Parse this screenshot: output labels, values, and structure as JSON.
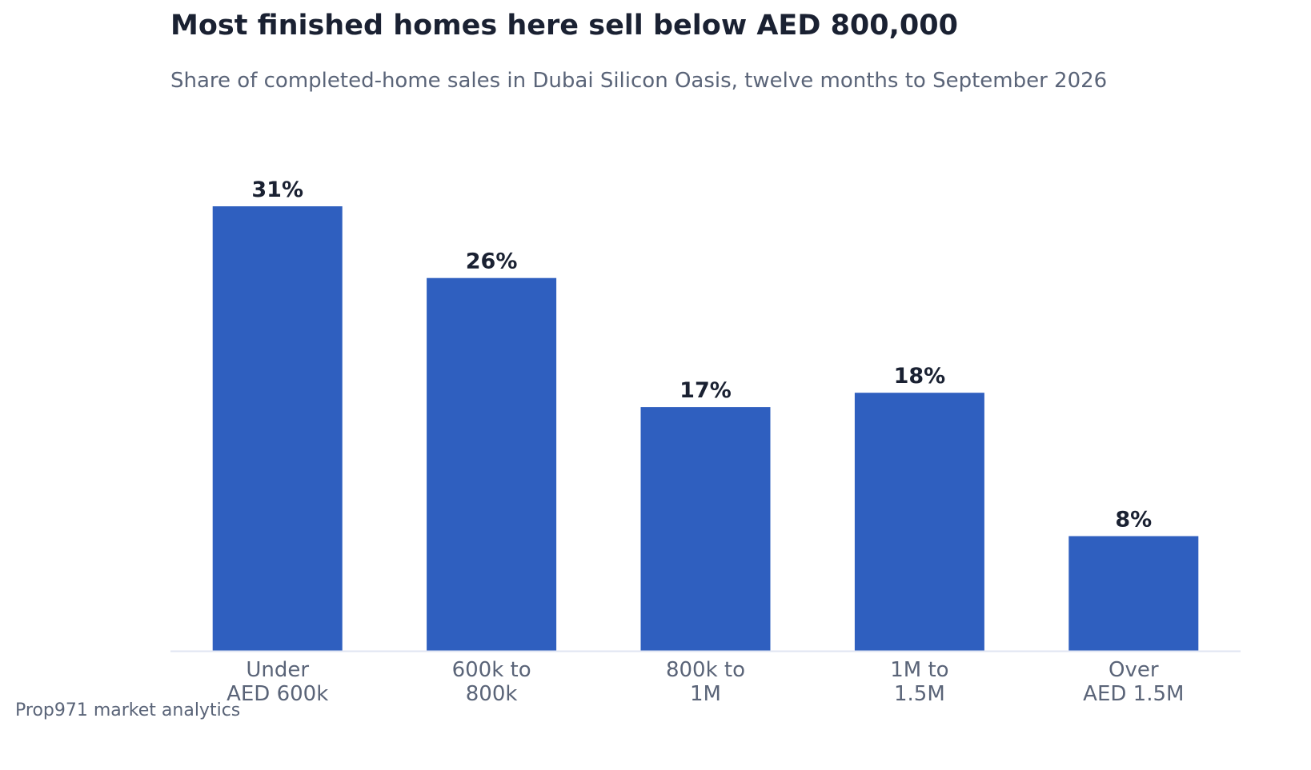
{
  "title": "Most finished homes here sell below AED 800,000",
  "subtitle": "Share of completed-home sales in Dubai Silicon Oasis, twelve months to September 2026",
  "footer": "Prop971 market analytics",
  "colors": {
    "bar": "#2f5fbf",
    "value_label": "#1a2132",
    "tick_label": "#5a6478",
    "baseline": "#e1e5f2"
  },
  "chart_data": {
    "type": "bar",
    "title": "Most finished homes here sell below AED 800,000",
    "subtitle": "Share of completed-home sales in Dubai Silicon Oasis, twelve months to September 2026",
    "categories": [
      [
        "Under",
        "AED 600k"
      ],
      [
        "600k to",
        "800k"
      ],
      [
        "800k to",
        "1M"
      ],
      [
        "1M to",
        "1.5M"
      ],
      [
        "Over",
        "AED 1.5M"
      ]
    ],
    "values": [
      31,
      26,
      17,
      18,
      8
    ],
    "data_labels": [
      "31%",
      "26%",
      "17%",
      "18%",
      "8%"
    ],
    "ylim": [
      0,
      31
    ],
    "grid": false,
    "legend": "none"
  }
}
